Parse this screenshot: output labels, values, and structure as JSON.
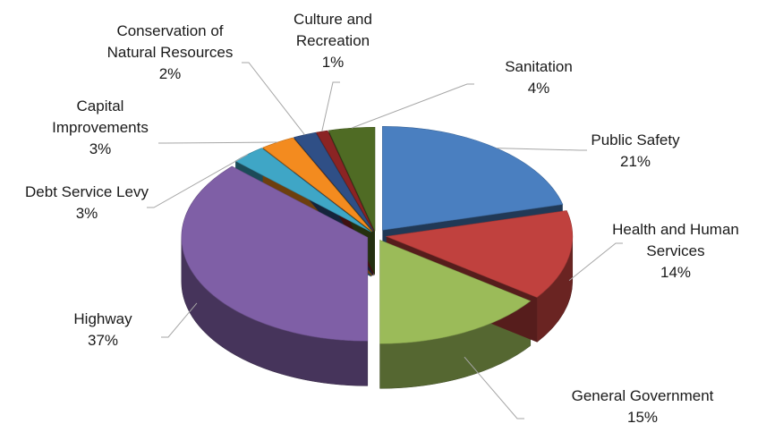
{
  "chart_data": {
    "type": "pie",
    "style": "3d-exploded",
    "title": "",
    "slices": [
      {
        "name": "Public Safety",
        "percent_label": "21%",
        "value": 21,
        "color": "#4a7fc0"
      },
      {
        "name": "Health and Human Services",
        "percent_label": "14%",
        "value": 14,
        "color": "#c0413e"
      },
      {
        "name": "General Government",
        "percent_label": "15%",
        "value": 15,
        "color": "#9bbb59"
      },
      {
        "name": "Highway",
        "percent_label": "37%",
        "value": 37,
        "color": "#7f5fa6"
      },
      {
        "name": "Debt Service Levy",
        "percent_label": "3%",
        "value": 3,
        "color": "#3fa6c6"
      },
      {
        "name": "Capital Improvements",
        "percent_label": "3%",
        "value": 3,
        "color": "#f38b1f"
      },
      {
        "name": "Conservation of Natural Resources",
        "percent_label": "2%",
        "value": 2,
        "color": "#2f4f86"
      },
      {
        "name": "Culture and Recreation",
        "percent_label": "1%",
        "value": 1,
        "color": "#8b2424"
      },
      {
        "name": "Sanitation",
        "percent_label": "4%",
        "value": 4,
        "color": "#4f6b24"
      }
    ]
  }
}
